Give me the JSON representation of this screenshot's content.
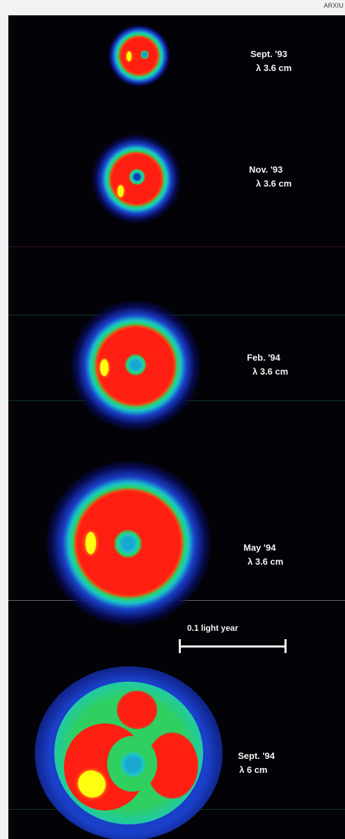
{
  "corner_label": "ARXIU",
  "frames": [
    {
      "date": "Sept. '93",
      "wavelength": "λ 3.6 cm"
    },
    {
      "date": "Nov. '93",
      "wavelength": "λ 3.6 cm"
    },
    {
      "date": "Feb. '94",
      "wavelength": "λ 3.6 cm"
    },
    {
      "date": "May '94",
      "wavelength": "λ 3.6 cm"
    },
    {
      "date": "Sept. '94",
      "wavelength": "λ 6 cm"
    }
  ],
  "scale_bar": {
    "label": "0.1 light year"
  },
  "colors": {
    "background": "#020207",
    "halo_blue": "#1a3fc8",
    "ring_cyan": "#19c7c8",
    "ring_green": "#2fd060",
    "shell_red": "#ff1e12",
    "hotspot_yellow": "#ffff10"
  }
}
